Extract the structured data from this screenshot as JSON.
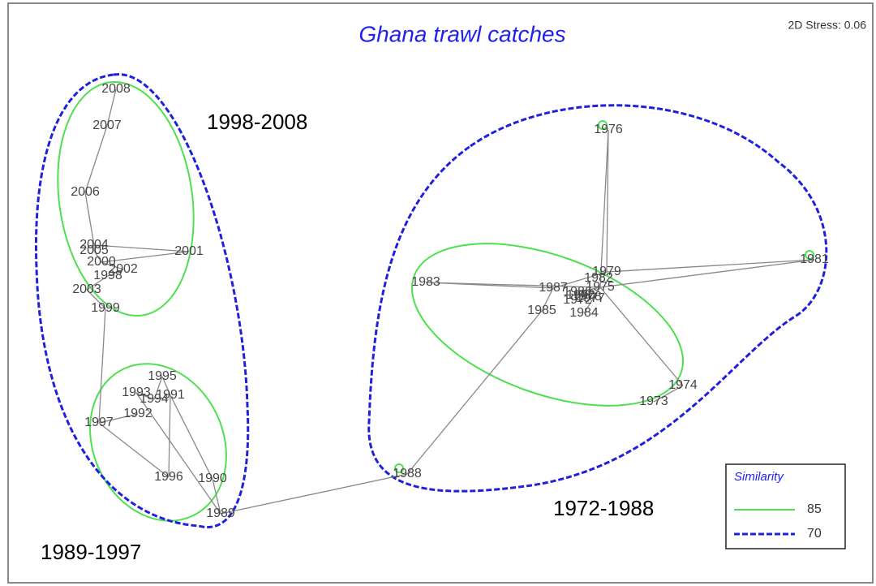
{
  "title": "Ghana trawl catches",
  "stress": "2D Stress: 0.06",
  "groups": [
    "1998-2008",
    "1989-1997",
    "1972-1988"
  ],
  "legend": {
    "title": "Similarity",
    "items": [
      "85",
      "70"
    ]
  },
  "nodes": [
    "2008",
    "2007",
    "2006",
    "2004",
    "2005",
    "2000",
    "2002",
    "1998",
    "2003",
    "2001",
    "1999",
    "1995",
    "1993",
    "1994",
    "1991",
    "1992",
    "1997",
    "1996",
    "1990",
    "1989",
    "1976",
    "1979",
    "1981",
    "1983",
    "1987",
    "1982",
    "1975",
    "1986",
    "1980",
    "1977",
    "1978",
    "1972",
    "1985",
    "1984",
    "1974",
    "1973",
    "1988"
  ]
}
